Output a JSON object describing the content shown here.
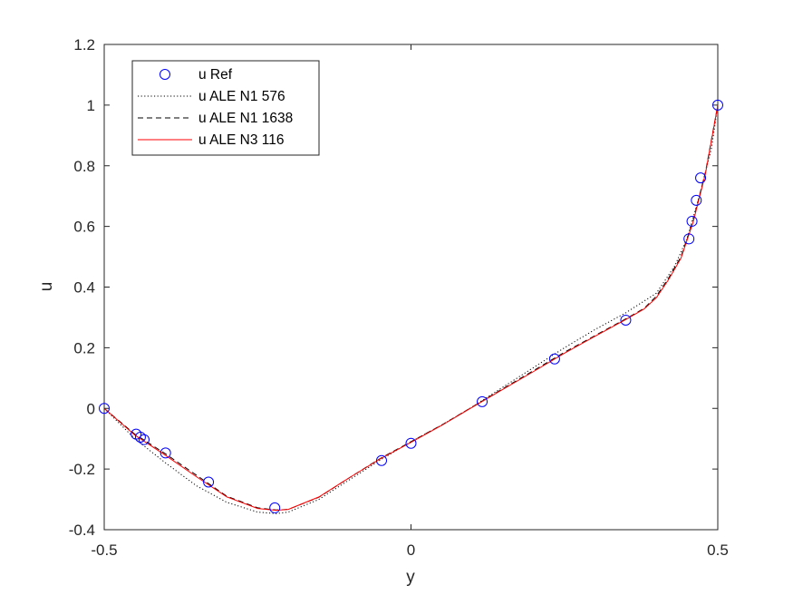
{
  "chart_data": {
    "type": "line",
    "title": "",
    "xlabel": "y",
    "ylabel": "u",
    "xlim": [
      -0.5,
      0.5
    ],
    "ylim": [
      -0.4,
      1.2
    ],
    "xticks": [
      -0.5,
      0,
      0.5
    ],
    "xtick_labels": [
      "-0.5",
      "0",
      "0.5"
    ],
    "yticks": [
      -0.4,
      -0.2,
      0,
      0.2,
      0.4,
      0.6,
      0.8,
      1,
      1.2
    ],
    "ytick_labels": [
      "-0.4",
      "-0.2",
      "0",
      "0.2",
      "0.4",
      "0.6",
      "0.8",
      "1",
      "1.2"
    ],
    "grid": false,
    "legend_position": "top-left",
    "series": [
      {
        "name": "u Ref",
        "style": "markers",
        "color": "#0000ff",
        "x": [
          -0.5,
          -0.448,
          -0.441,
          -0.435,
          -0.4,
          -0.33,
          -0.222,
          -0.048,
          0.0,
          0.116,
          0.234,
          0.35,
          0.453,
          0.458,
          0.465,
          0.472,
          0.5
        ],
        "y": [
          0.0,
          -0.085,
          -0.095,
          -0.103,
          -0.147,
          -0.243,
          -0.328,
          -0.172,
          -0.115,
          0.022,
          0.163,
          0.291,
          0.559,
          0.617,
          0.686,
          0.76,
          1.0
        ]
      },
      {
        "name": "u ALE N1 576",
        "style": "dotted",
        "color": "#000000",
        "x": [
          -0.5,
          -0.45,
          -0.4,
          -0.35,
          -0.3,
          -0.25,
          -0.22,
          -0.2,
          -0.15,
          -0.1,
          -0.05,
          0.0,
          0.05,
          0.1,
          0.15,
          0.2,
          0.25,
          0.3,
          0.35,
          0.4,
          0.43,
          0.45,
          0.47,
          0.49,
          0.5
        ],
        "y": [
          0.0,
          -0.1,
          -0.18,
          -0.255,
          -0.31,
          -0.342,
          -0.347,
          -0.342,
          -0.3,
          -0.235,
          -0.17,
          -0.11,
          -0.055,
          0.005,
          0.07,
          0.135,
          0.2,
          0.26,
          0.315,
          0.38,
          0.47,
          0.56,
          0.7,
          0.86,
          1.0
        ]
      },
      {
        "name": "u ALE N1 1638",
        "style": "dashed",
        "color": "#000000",
        "x": [
          -0.5,
          -0.45,
          -0.4,
          -0.35,
          -0.3,
          -0.25,
          -0.22,
          -0.2,
          -0.15,
          -0.1,
          -0.05,
          0.0,
          0.05,
          0.1,
          0.15,
          0.2,
          0.25,
          0.3,
          0.35,
          0.38,
          0.4,
          0.42,
          0.44,
          0.46,
          0.48,
          0.5
        ],
        "y": [
          0.0,
          -0.085,
          -0.15,
          -0.22,
          -0.29,
          -0.328,
          -0.335,
          -0.333,
          -0.293,
          -0.228,
          -0.165,
          -0.11,
          -0.055,
          0.005,
          0.065,
          0.125,
          0.185,
          0.24,
          0.295,
          0.33,
          0.37,
          0.43,
          0.5,
          0.62,
          0.78,
          1.0
        ]
      },
      {
        "name": "u ALE N3 116",
        "style": "solid",
        "color": "#ff0000",
        "x": [
          -0.5,
          -0.45,
          -0.4,
          -0.35,
          -0.3,
          -0.25,
          -0.22,
          -0.2,
          -0.15,
          -0.1,
          -0.05,
          0.0,
          0.05,
          0.1,
          0.15,
          0.2,
          0.25,
          0.3,
          0.35,
          0.38,
          0.4,
          0.42,
          0.44,
          0.46,
          0.48,
          0.5
        ],
        "y": [
          0.0,
          -0.088,
          -0.155,
          -0.225,
          -0.292,
          -0.33,
          -0.336,
          -0.333,
          -0.292,
          -0.228,
          -0.166,
          -0.112,
          -0.056,
          0.004,
          0.063,
          0.122,
          0.182,
          0.238,
          0.293,
          0.328,
          0.365,
          0.425,
          0.495,
          0.615,
          0.775,
          1.0
        ]
      }
    ]
  },
  "colors": {
    "ref_marker": "#0000ff",
    "n1_576": "#000000",
    "n1_1638": "#000000",
    "n3_116": "#ff0000",
    "axes": "#262626"
  }
}
